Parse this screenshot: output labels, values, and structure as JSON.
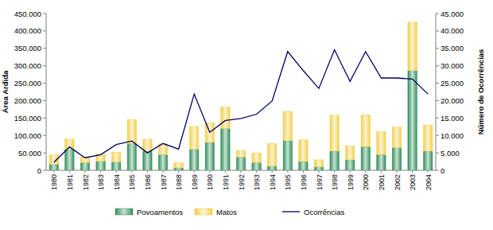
{
  "chart_data": {
    "type": "bar",
    "stacked": true,
    "legend": "bottom",
    "grid": false,
    "y_label": "Área Ardida",
    "y2_label": "Número de Ocorrências",
    "categories": [
      "1980",
      "1981",
      "1982",
      "1983",
      "1984",
      "1985",
      "1986",
      "1987",
      "1988",
      "1989",
      "1990",
      "1991",
      "1992",
      "1993",
      "1994",
      "1995",
      "1996",
      "1997",
      "1998",
      "1999",
      "2000",
      "2001",
      "2002",
      "2003",
      "2004"
    ],
    "ylim": [
      0,
      450000
    ],
    "yticks": [
      0,
      {
        "value": 50000,
        "label": "50.000"
      },
      {
        "value": 100000,
        "label": "100.000"
      },
      {
        "value": 150000,
        "label": "150.000"
      },
      {
        "value": 200000,
        "label": "200.000"
      },
      {
        "value": 250000,
        "label": "250.000"
      },
      {
        "value": 300000,
        "label": "300.000"
      },
      {
        "value": 350000,
        "label": "350.000"
      },
      {
        "value": 400000,
        "label": "400.000"
      },
      {
        "value": 450000,
        "label": "450.000"
      }
    ],
    "y2lim": [
      0,
      45000
    ],
    "y2ticks": [
      0,
      {
        "value": 5000,
        "label": "5.000"
      },
      {
        "value": 10000,
        "label": "10.000"
      },
      {
        "value": 15000,
        "label": "15.000"
      },
      {
        "value": 20000,
        "label": "20.000"
      },
      {
        "value": 25000,
        "label": "25.000"
      },
      {
        "value": 30000,
        "label": "30.000"
      },
      {
        "value": 35000,
        "label": "35.000"
      },
      {
        "value": 40000,
        "label": "40.000"
      },
      {
        "value": 45000,
        "label": "45.000"
      }
    ],
    "series": [
      {
        "name": "Povoamentos",
        "type": "bar",
        "color": "#2f8f5a",
        "values": [
          17000,
          60000,
          22000,
          26000,
          24000,
          77000,
          55000,
          45000,
          7000,
          60000,
          80000,
          120000,
          38000,
          22000,
          12000,
          85000,
          25000,
          10000,
          55000,
          30000,
          68000,
          45000,
          65000,
          286000,
          55000
        ]
      },
      {
        "name": "Matos",
        "type": "bar",
        "color": "#f2cf4a",
        "values": [
          27000,
          30000,
          17000,
          21000,
          28000,
          69000,
          34000,
          31000,
          15000,
          66000,
          57000,
          62000,
          19000,
          28000,
          65000,
          84000,
          63000,
          20000,
          103000,
          40000,
          91000,
          66000,
          59000,
          139000,
          75000
        ]
      },
      {
        "name": "Ocorrências",
        "type": "line",
        "axis": "y2",
        "color": "#000066",
        "values": [
          2300,
          6700,
          3600,
          4500,
          7400,
          8400,
          5000,
          7700,
          6100,
          21900,
          10900,
          14300,
          14900,
          16100,
          19900,
          34100,
          28600,
          23500,
          34600,
          25500,
          34100,
          26500,
          26500,
          26200,
          21900
        ]
      }
    ]
  }
}
